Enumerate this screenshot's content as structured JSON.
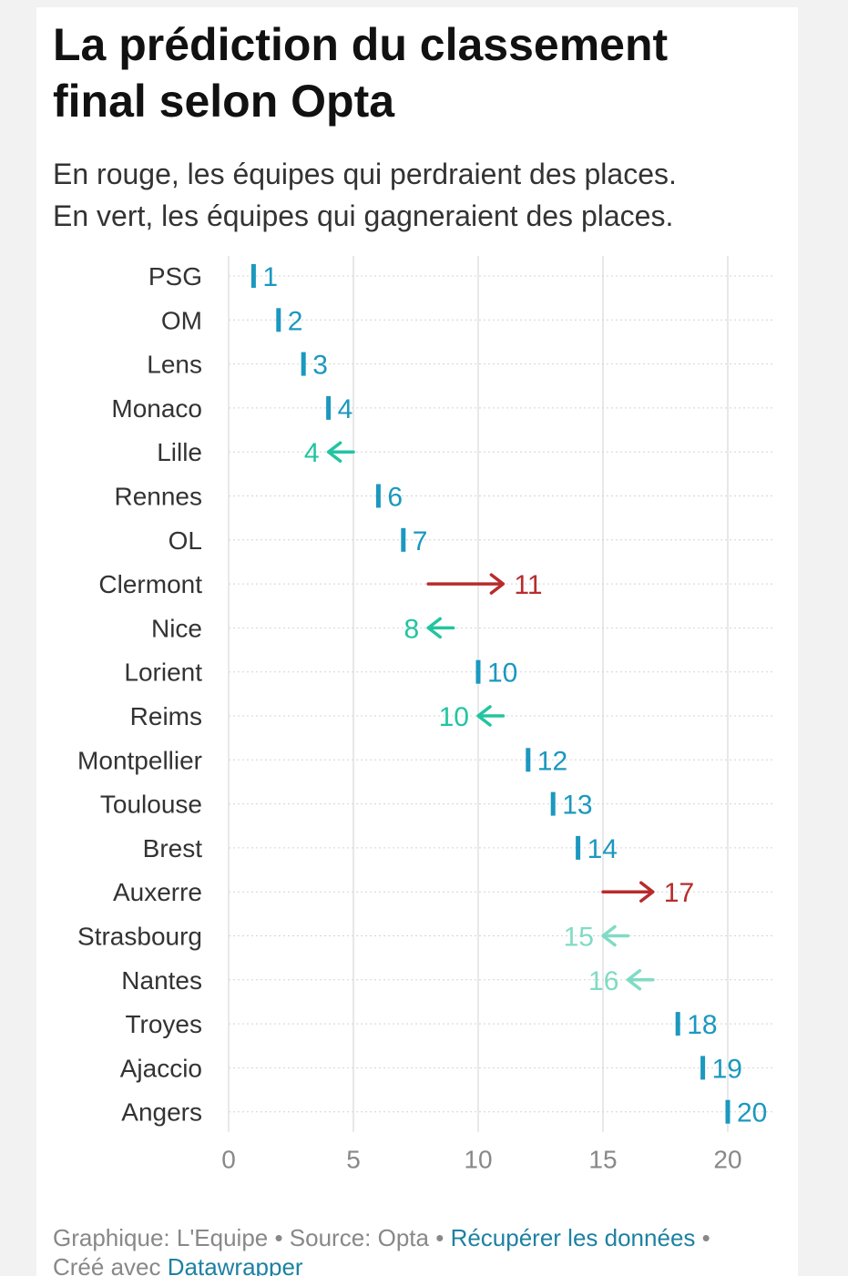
{
  "title": "La prédiction du classement final selon Opta",
  "subtitle_line1": "En rouge, les équipes qui perdraient des places.",
  "subtitle_line2": "En vert, les équipes qui gagneraient des places.",
  "colors": {
    "same": "#1b98bf",
    "gain_dark": "#21c5a0",
    "gain_light": "#7fdcc4",
    "loss": "#b82c2c",
    "grid": "#e0e0e0",
    "text": "#333333",
    "muted": "#888888",
    "link": "#1d81a2"
  },
  "chart_data": {
    "type": "arrow-dot",
    "title": "La prédiction du classement final selon Opta",
    "xlim": [
      0,
      21
    ],
    "xticks": [
      0,
      5,
      10,
      15,
      20
    ],
    "legend": "none",
    "rows": [
      {
        "team": "PSG",
        "current": 1,
        "predicted": 1,
        "status": "same"
      },
      {
        "team": "OM",
        "current": 2,
        "predicted": 2,
        "status": "same"
      },
      {
        "team": "Lens",
        "current": 3,
        "predicted": 3,
        "status": "same"
      },
      {
        "team": "Monaco",
        "current": 4,
        "predicted": 4,
        "status": "same"
      },
      {
        "team": "Lille",
        "current": 5,
        "predicted": 4,
        "status": "gain"
      },
      {
        "team": "Rennes",
        "current": 6,
        "predicted": 6,
        "status": "same"
      },
      {
        "team": "OL",
        "current": 7,
        "predicted": 7,
        "status": "same"
      },
      {
        "team": "Clermont",
        "current": 8,
        "predicted": 11,
        "status": "loss"
      },
      {
        "team": "Nice",
        "current": 9,
        "predicted": 8,
        "status": "gain"
      },
      {
        "team": "Lorient",
        "current": 10,
        "predicted": 10,
        "status": "same"
      },
      {
        "team": "Reims",
        "current": 11,
        "predicted": 10,
        "status": "gain"
      },
      {
        "team": "Montpellier",
        "current": 12,
        "predicted": 12,
        "status": "same"
      },
      {
        "team": "Toulouse",
        "current": 13,
        "predicted": 13,
        "status": "same"
      },
      {
        "team": "Brest",
        "current": 14,
        "predicted": 14,
        "status": "same"
      },
      {
        "team": "Auxerre",
        "current": 15,
        "predicted": 17,
        "status": "loss"
      },
      {
        "team": "Strasbourg",
        "current": 16,
        "predicted": 15,
        "status": "gain",
        "tone": "light"
      },
      {
        "team": "Nantes",
        "current": 17,
        "predicted": 16,
        "status": "gain",
        "tone": "light"
      },
      {
        "team": "Troyes",
        "current": 18,
        "predicted": 18,
        "status": "same"
      },
      {
        "team": "Ajaccio",
        "current": 19,
        "predicted": 19,
        "status": "same"
      },
      {
        "team": "Angers",
        "current": 20,
        "predicted": 20,
        "status": "same"
      }
    ]
  },
  "footer": {
    "credit": "Graphique: L'Equipe • Source: Opta •",
    "data_link": "Récupérer les données",
    "sep": "•",
    "created_with": "Créé avec",
    "tool_link": "Datawrapper"
  }
}
